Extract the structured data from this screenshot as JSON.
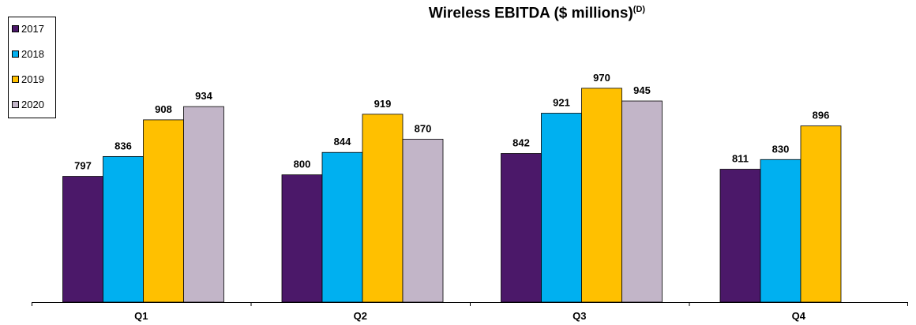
{
  "chart_data": {
    "type": "bar",
    "title": "Wireless EBITDA ($ millions)",
    "title_superscript": "(D)",
    "categories": [
      "Q1",
      "Q2",
      "Q3",
      "Q4"
    ],
    "series": [
      {
        "name": "2017",
        "color": "#4B1869",
        "values": [
          797,
          800,
          842,
          811
        ]
      },
      {
        "name": "2018",
        "color": "#00B0F0",
        "values": [
          836,
          844,
          921,
          830
        ]
      },
      {
        "name": "2019",
        "color": "#FFC000",
        "values": [
          908,
          919,
          970,
          896
        ]
      },
      {
        "name": "2020",
        "color": "#C2B5C8",
        "values": [
          934,
          870,
          945,
          null
        ]
      }
    ],
    "xlabel": "",
    "ylabel": "",
    "ylim": [
      550,
      980
    ],
    "grid": false,
    "legend_position": "top-left"
  }
}
